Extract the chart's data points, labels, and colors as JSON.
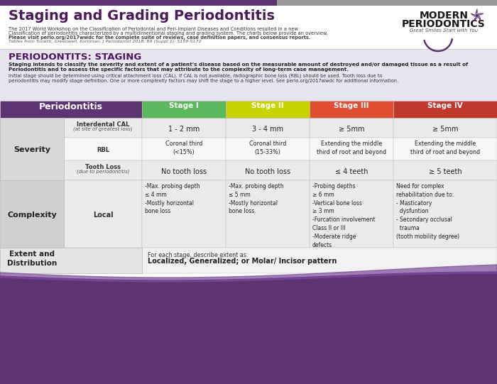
{
  "title": "Staging and Grading Periodontitis",
  "subtitle1": "The 2017 World Workshop on the Classification of Periodontal and Peri-Implant Diseases and Conditions resulted in a new",
  "subtitle2": "Classification of periodontitis characterized by a multidimentional staging and grading system. The charts below provide an overview.",
  "subtitle3": "Please visit perio.org/2017wwdc for the complete suite of reviews, case definition papers, and consensus reports.",
  "subtitle4": "Tables from Tonetti, Greenwell, Kornman. J Periodontol 2018; 89 (Suppl 1): S159-S172",
  "section_title": "PERIODONTITS: STAGING",
  "section_bold1": "Staging intends to classify the severity and extent of a patient's disease based on the measurable amount of destroyed and/or damaged tissue as a result of",
  "section_bold2": "Periodontitis and to assess the specific factors that may attribute to the complexity of long-term case management.",
  "section_norm1": "Initial stage should be determined using critical attachment loss (CAL). If CAL is not available, radiographic bone loss (RBL) should be used. Tooth loss due to",
  "section_norm2": "periodontitis may modify stage definition. One or more complexity factors may shift the stage to a higher level. See perio.org/2017wwdc for additional information.",
  "col_header_bg": "#5c3472",
  "stage1_bg": "#5cb85c",
  "stage2_bg": "#c8d400",
  "stage3_bg": "#e05030",
  "stage4_bg": "#c0392b",
  "row_alt1": "#ebebeb",
  "row_alt2": "#f7f7f7",
  "section_bg": "#e8e5f0",
  "top_bar_purple": "#5c3472",
  "top_bar_gray": "#999999",
  "severity_label_bg": "#d8d8d8",
  "complexity_label_bg": "#d0d0d0",
  "extent_bg": "#e5e5e5",
  "table_header": "Periodontitis",
  "stages": [
    "Stage I",
    "Stage II",
    "Stage III",
    "Stage IV"
  ],
  "cal_vals": [
    "1 - 2 mm",
    "3 - 4 mm",
    "≥ 5mm",
    "≥ 5mm"
  ],
  "rbl_vals": [
    "Coronal third\n(<15%)",
    "Coronal third\n(15-33%)",
    "Extending the middle\nthird of root and beyond",
    "Extending the middle\nthird of root and beyond"
  ],
  "tl_vals": [
    "No tooth loss",
    "No tooth loss",
    "≤ 4 teeth",
    "≥ 5 teeth"
  ],
  "comp_vals": [
    "-Max. probing depth\n≤ 4 mm\n-Mostly horizontal\nbone loss",
    "-Max. probing depth\n≤ 5 mm\n-Mostly horizontal\nbone loss",
    "-Probing depths\n≥ 6 mm\n-Vertical bone loss\n≥ 3 mm\n-Furcation involvement\nClass II or III\n-Moderate ridge\ndefects",
    "Need for complex\nrehabilitation due to:\n- Masticatory\n  dysfuntion\n- Secondary occlusal\n  trauma\n(tooth mobility degree)"
  ],
  "extent_label": "Extent and\nDistribution",
  "extent_line1": "For each stage, describe extent as:",
  "extent_line2": "Localized, Generalized; or Molar/ Incisor pattern",
  "logo1": "MODERN",
  "logo2": "PERIODONTICS",
  "logo3": "Great Smiles Start with You",
  "wave_color": "#5c3472",
  "wave_color2": "#7a4a9a",
  "bg_white": "#ffffff",
  "border_color": "#bbbbbb"
}
